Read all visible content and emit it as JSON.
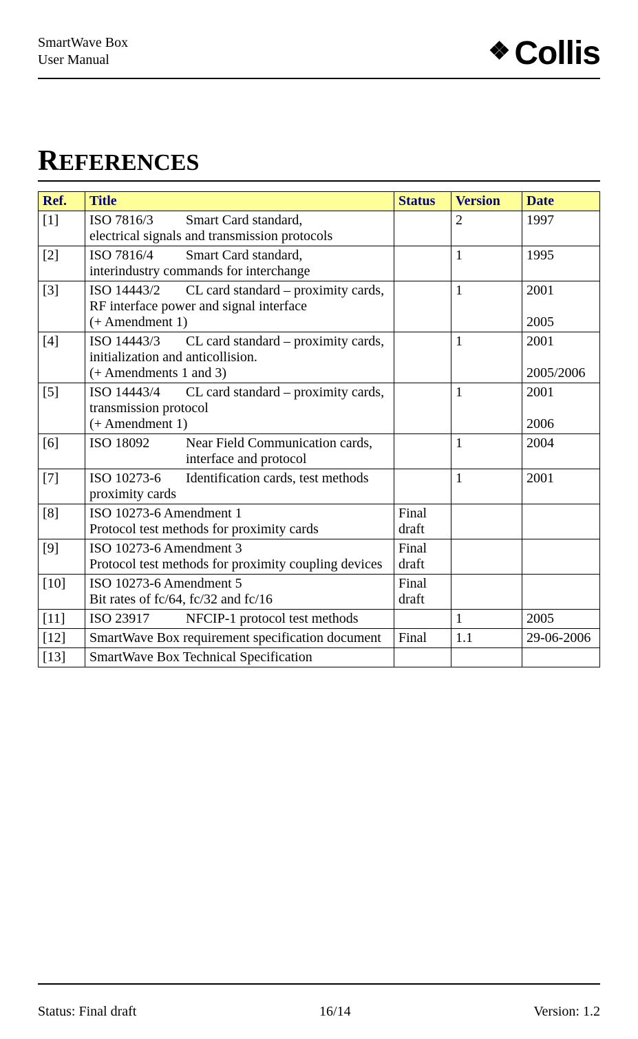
{
  "header": {
    "line1": "SmartWave Box",
    "line2": "User Manual",
    "brand": "Collis"
  },
  "section": {
    "title_cap": "R",
    "title_rest": "EFERENCES"
  },
  "table": {
    "headers": {
      "ref": "Ref.",
      "title": "Title",
      "status": "Status",
      "version": "Version",
      "date": "Date"
    },
    "header_bg": "#ffff99",
    "header_color": "#000080",
    "rows": [
      {
        "ref": "[1]",
        "title_std": "ISO 7816/3",
        "title_desc": "Smart Card standard,",
        "title_sub": "electrical signals and transmission protocols",
        "status": "",
        "version": "2",
        "date": "1997"
      },
      {
        "ref": "[2]",
        "title_std": "ISO 7816/4",
        "title_desc": "Smart Card standard,",
        "title_sub": "interindustry commands for interchange",
        "status": "",
        "version": "1",
        "date": "1995"
      },
      {
        "ref": "[3]",
        "title_std": "ISO 14443/2",
        "title_desc": "CL card standard – proximity cards,",
        "title_sub": "RF interface power and signal interface",
        "title_sub2": "(+ Amendment 1)",
        "status": "",
        "version": "1",
        "date": "2001",
        "date2": "2005"
      },
      {
        "ref": "[4]",
        "title_std": "ISO 14443/3",
        "title_desc": "CL card standard – proximity cards,",
        "title_sub": "initialization and anticollision.",
        "title_sub2": "(+ Amendments 1 and 3)",
        "status": "",
        "version": "1",
        "date": "2001",
        "date2": "2005/2006"
      },
      {
        "ref": "[5]",
        "title_std": "ISO 14443/4",
        "title_desc": "CL card standard – proximity cards,",
        "title_sub": "transmission protocol",
        "title_sub2": "(+ Amendment 1)",
        "status": "",
        "version": "1",
        "date": "2001",
        "date2": "2006"
      },
      {
        "ref": "[6]",
        "title_std": "ISO 18092",
        "title_desc": "Near Field Communication cards,",
        "title_indent_desc": "interface and protocol",
        "status": "",
        "version": "1",
        "date": "2004"
      },
      {
        "ref": "[7]",
        "title_std": "ISO 10273-6",
        "title_desc": "Identification cards, test methods",
        "title_sub": "proximity cards",
        "status": "",
        "version": "1",
        "date": "2001"
      },
      {
        "ref": "[8]",
        "title_plain": "ISO 10273-6 Amendment 1",
        "title_sub": "Protocol test methods for proximity cards",
        "status": "Final draft",
        "version": "",
        "date": ""
      },
      {
        "ref": "[9]",
        "title_plain": "ISO 10273-6 Amendment 3",
        "title_sub": "Protocol test methods for proximity coupling devices",
        "status": "Final draft",
        "version": "",
        "date": ""
      },
      {
        "ref": "[10]",
        "title_plain": "ISO 10273-6 Amendment 5",
        "title_sub": "Bit rates of fc/64, fc/32 and fc/16",
        "status": "Final draft",
        "version": "",
        "date": ""
      },
      {
        "ref": "[11]",
        "title_std": "ISO 23917",
        "title_desc": "NFCIP-1 protocol test methods",
        "status": "",
        "version": "1",
        "date": "2005"
      },
      {
        "ref": "[12]",
        "title_plain": "SmartWave Box requirement specification document",
        "status": "Final",
        "version": "1.1",
        "date": "29-06-2006"
      },
      {
        "ref": "[13]",
        "title_plain": "SmartWave Box Technical Specification",
        "status": "",
        "version": "",
        "date": ""
      }
    ]
  },
  "footer": {
    "status": "Status: Final draft",
    "page": "16/14",
    "version": "Version: 1.2"
  }
}
